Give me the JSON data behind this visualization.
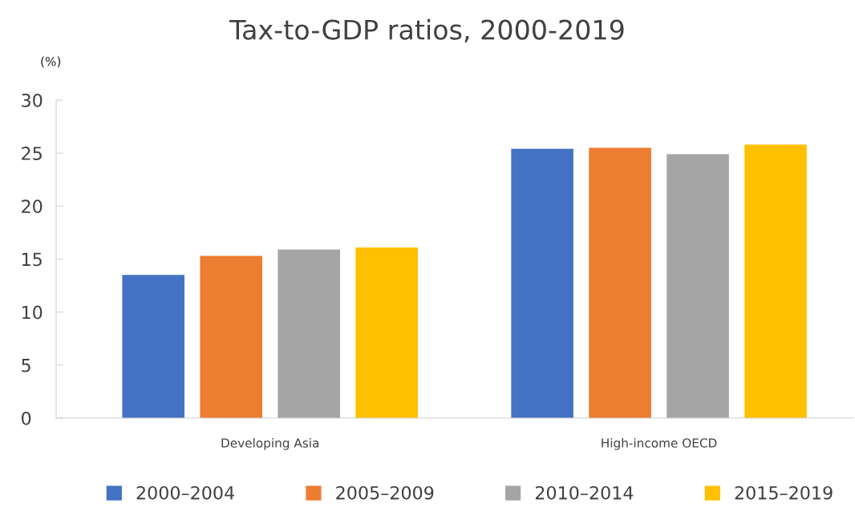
{
  "chart_data": {
    "type": "bar",
    "title": "Tax-to-GDP ratios, 2000-2019",
    "ylabel": "(%)",
    "categories": [
      "Developing Asia",
      "High-income OECD"
    ],
    "series": [
      {
        "name": "2000–2004",
        "color": "#4472c4",
        "values": [
          13.5,
          25.4
        ]
      },
      {
        "name": "2005–2009",
        "color": "#ed7d31",
        "values": [
          15.3,
          25.5
        ]
      },
      {
        "name": "2010–2014",
        "color": "#a5a5a5",
        "values": [
          15.9,
          24.9
        ]
      },
      {
        "name": "2015–2019",
        "color": "#ffc000",
        "values": [
          16.1,
          25.8
        ]
      }
    ],
    "ylim": [
      0,
      30
    ],
    "yticks": [
      0,
      5,
      10,
      15,
      20,
      25,
      30
    ],
    "grid": false,
    "legend": "bottom"
  }
}
